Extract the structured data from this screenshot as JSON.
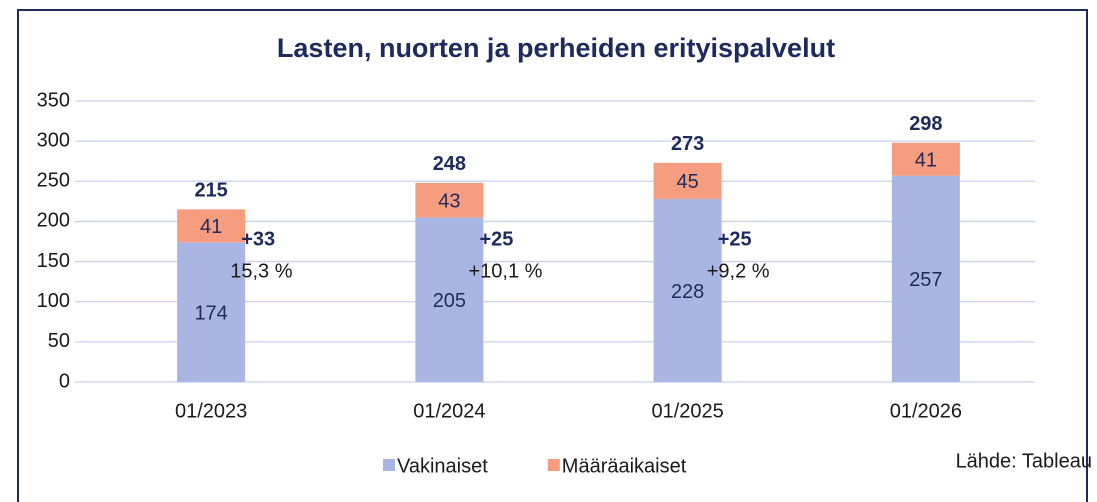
{
  "chart_data": {
    "type": "bar",
    "stacked": true,
    "title": "Lasten, nuorten ja perheiden erityispalvelut",
    "categories": [
      "01/2023",
      "01/2024",
      "01/2025",
      "01/2026"
    ],
    "series": [
      {
        "name": "Vakinaiset",
        "color": "#a9b6e3",
        "values": [
          174,
          205,
          228,
          257
        ]
      },
      {
        "name": "Määräaikaiset",
        "color": "#f79d7f",
        "values": [
          41,
          43,
          45,
          41
        ]
      }
    ],
    "totals": [
      215,
      248,
      273,
      298
    ],
    "changes": [
      {
        "diff": "+33",
        "pct": "15,3 %"
      },
      {
        "diff": "+25",
        "pct": "+10,1 %"
      },
      {
        "diff": "+25",
        "pct": "+9,2 %"
      }
    ],
    "source": "Lähde: Tableau",
    "ylim": [
      0,
      350
    ],
    "yticks": [
      0,
      50,
      100,
      150,
      200,
      250,
      300,
      350
    ],
    "grid": true
  }
}
